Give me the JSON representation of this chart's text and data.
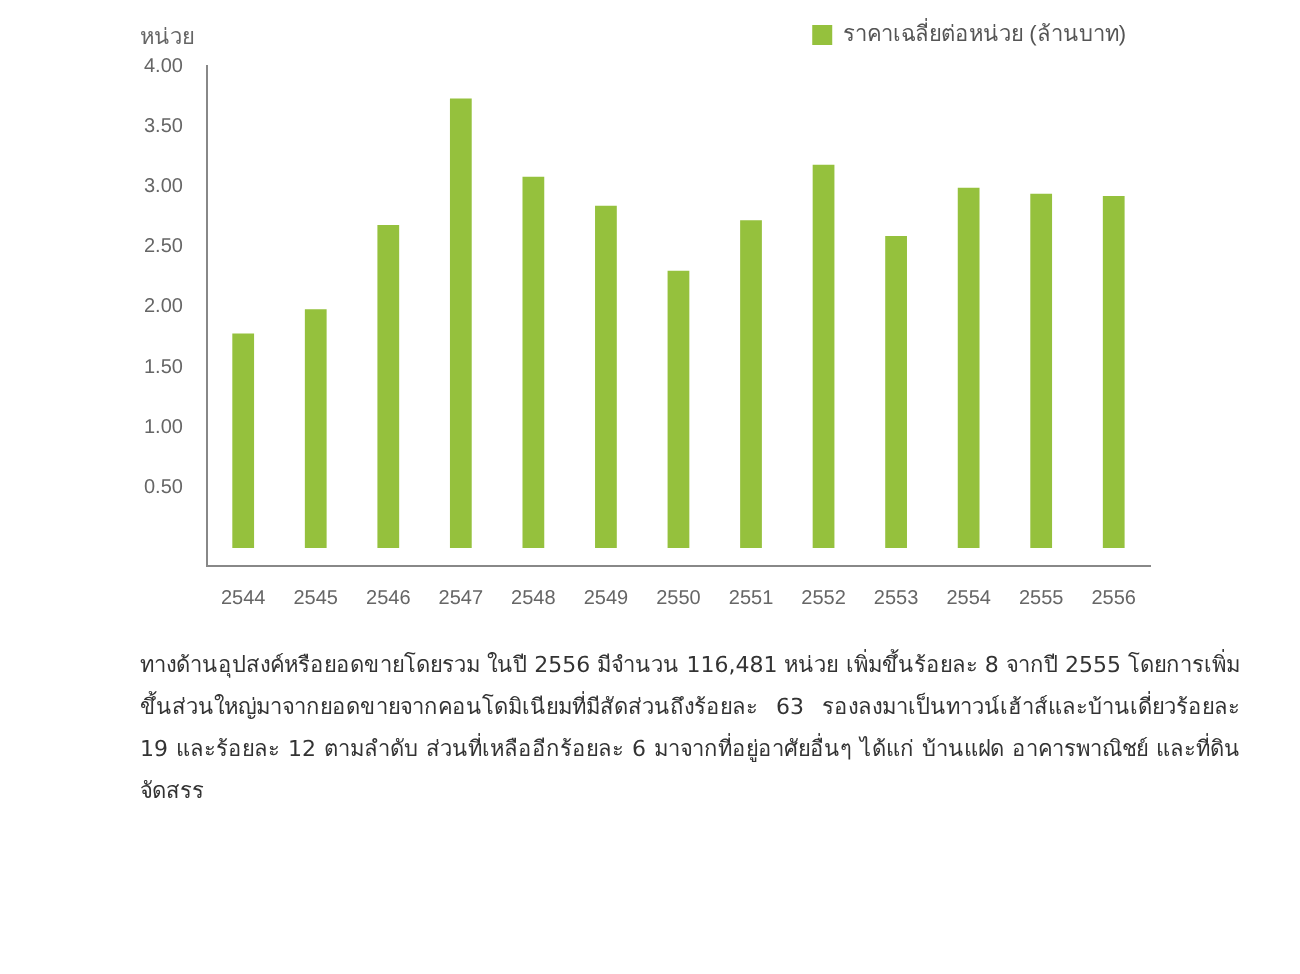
{
  "chart_data": {
    "type": "bar",
    "ylabel": "หน่วย",
    "categories": [
      "2544",
      "2545",
      "2546",
      "2547",
      "2548",
      "2549",
      "2550",
      "2551",
      "2552",
      "2553",
      "2554",
      "2555",
      "2556"
    ],
    "series": [
      {
        "name": "ราคาเฉลี่ยต่อหน่วย (ล้านบาท)",
        "color": "#95c13d",
        "values": [
          1.78,
          1.98,
          2.68,
          3.73,
          3.08,
          2.84,
          2.3,
          2.72,
          3.18,
          2.59,
          2.99,
          2.94,
          2.92
        ]
      }
    ],
    "ylim": [
      -0.15,
      4
    ],
    "yticks": [
      {
        "value": 0.5,
        "label": "0.50"
      },
      {
        "value": 1,
        "label": "1.00"
      },
      {
        "value": 1.5,
        "label": "1.50"
      },
      {
        "value": 2,
        "label": "2.00"
      },
      {
        "value": 2.5,
        "label": "2.50"
      },
      {
        "value": 3,
        "label": "3.00"
      },
      {
        "value": 3.5,
        "label": "3.50"
      },
      {
        "value": 4,
        "label": "4.00"
      }
    ],
    "grid": false,
    "legend": "top right",
    "annotations": [
      "ทางด้านอุปสงค์หรือยอดขายโดยรวม ในปี 2556 มีจำนวน 116,481 หน่วย เพิ่มขึ้นร้อยละ 8 จากปี 2555 โดยการเพิ่มขึ้นส่วนใหญ่มาจากยอดขายจากคอนโดมิเนียมที่มีสัดส่วนถึงร้อยละ 63 รองลงมาเป็นทาวน์เฮ้าส์และบ้านเดี่ยวร้อยละ 19 และร้อยละ 12 ตามลำดับ ส่วนที่เหลืออีกร้อยละ 6 มาจากที่อยู่อาศัยอื่นๆ ได้แก่ บ้านแฝด อาคารพาณิชย์ และที่ดินจัดสรร"
    ]
  }
}
